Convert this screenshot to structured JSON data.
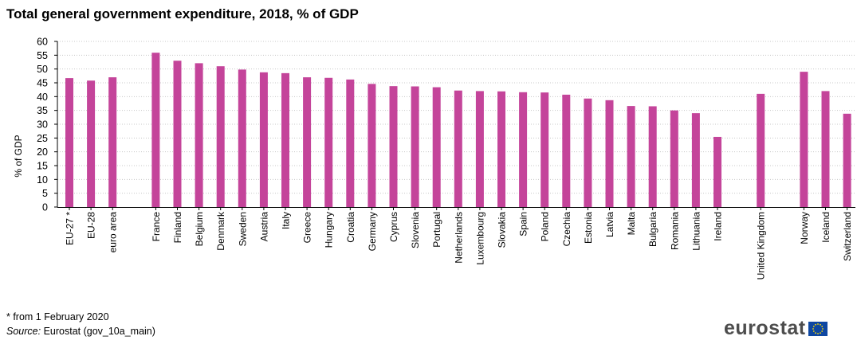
{
  "title": "Total general government expenditure, 2018, % of GDP",
  "footnote": "* from 1 February 2020",
  "source": {
    "label": "Source:",
    "text": " Eurostat (gov_10a_main)"
  },
  "logo_text": "eurostat",
  "colors": {
    "bar": "#c4449a",
    "grid": "#c8c8c8",
    "axis": "#000000",
    "logo_flag": "#0e47a1",
    "logo_stars": "#ffdd00"
  },
  "chart_data": {
    "type": "bar",
    "ylabel": "% of GDP",
    "ylim": [
      0,
      60
    ],
    "yticks": [
      0,
      5,
      10,
      15,
      20,
      25,
      30,
      35,
      40,
      45,
      50,
      55,
      60
    ],
    "grid": "horizontal dotted",
    "groups": [
      {
        "categories": [
          "EU-27 *",
          "EU-28",
          "euro area"
        ],
        "values": [
          46.7,
          45.8,
          47.0
        ]
      },
      {
        "categories": [
          "France",
          "Finland",
          "Belgium",
          "Denmark",
          "Sweden",
          "Austria",
          "Italy",
          "Greece",
          "Hungary",
          "Croatia",
          "Germany",
          "Cyprus",
          "Slovenia",
          "Portugal",
          "Netherlands",
          "Luxembourg",
          "Slovakia",
          "Spain",
          "Poland",
          "Czechia",
          "Estonia",
          "Latvia",
          "Malta",
          "Bulgaria",
          "Romania",
          "Lithuania",
          "Ireland"
        ],
        "values": [
          55.9,
          53.0,
          52.1,
          51.0,
          49.8,
          48.8,
          48.5,
          47.0,
          46.8,
          46.2,
          44.6,
          43.8,
          43.7,
          43.4,
          42.2,
          42.0,
          41.9,
          41.6,
          41.5,
          40.7,
          39.3,
          38.7,
          36.6,
          36.5,
          35.0,
          34.0,
          25.4
        ]
      },
      {
        "categories": [
          "United Kingdom"
        ],
        "values": [
          41.0
        ]
      },
      {
        "categories": [
          "Norway",
          "Iceland",
          "Switzerland"
        ],
        "values": [
          49.0,
          42.0,
          33.8
        ]
      }
    ]
  }
}
